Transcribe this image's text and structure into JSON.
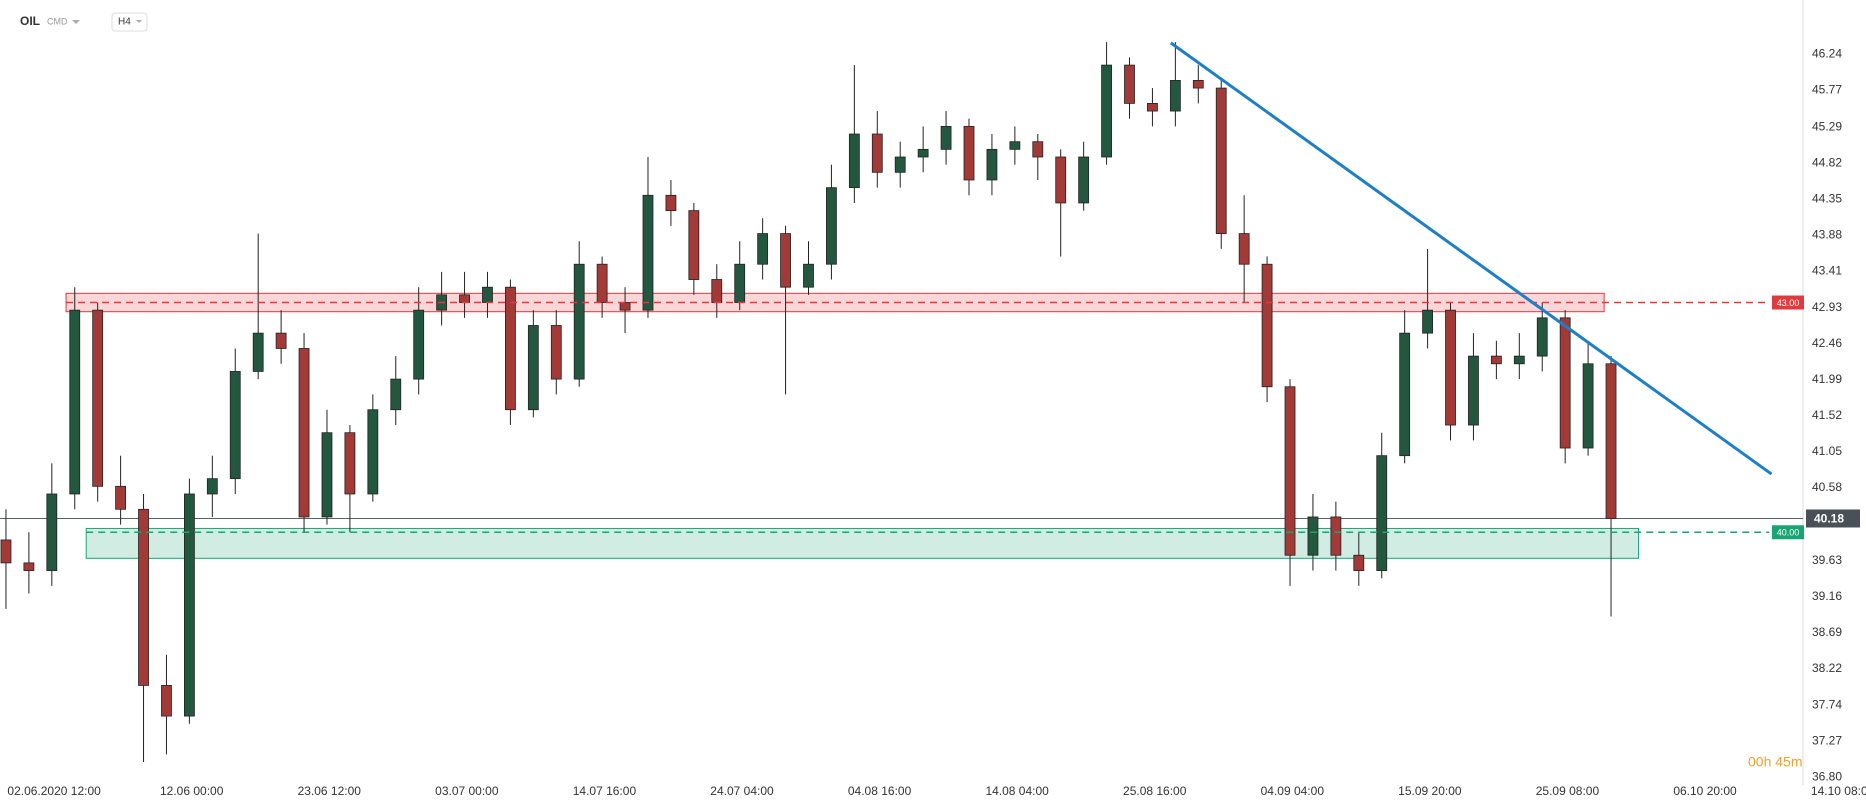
{
  "header": {
    "symbol": "OIL",
    "market": "CMD",
    "timeframe": "H4"
  },
  "countdown": "00h 45m",
  "chart_data": {
    "type": "candlestick",
    "x": [
      0,
      1,
      2,
      3,
      4,
      5,
      6,
      7,
      8,
      9,
      10,
      11,
      12,
      13,
      14,
      15,
      16,
      17,
      18,
      19,
      20,
      21,
      22,
      23,
      24,
      25,
      26,
      27,
      28,
      29,
      30,
      31,
      32,
      33,
      34,
      35,
      36,
      37,
      38,
      39,
      40,
      41,
      42,
      43,
      44,
      45,
      46,
      47,
      48,
      49,
      50,
      51,
      52,
      53,
      54,
      55,
      56,
      57,
      58,
      59,
      60,
      61,
      62,
      63,
      64,
      65,
      66,
      67,
      68,
      69,
      70
    ],
    "open": [
      39.9,
      39.6,
      39.5,
      40.5,
      42.9,
      40.6,
      40.3,
      38.0,
      37.6,
      40.5,
      40.7,
      42.1,
      42.6,
      42.4,
      40.2,
      41.3,
      40.5,
      41.6,
      42.0,
      42.9,
      43.1,
      43.0,
      43.2,
      41.6,
      42.7,
      42.0,
      43.5,
      43.0,
      42.9,
      44.4,
      44.2,
      43.3,
      43.0,
      43.5,
      43.9,
      43.2,
      43.5,
      44.5,
      45.2,
      44.7,
      44.9,
      45.0,
      45.3,
      44.6,
      45.0,
      45.1,
      44.9,
      44.3,
      44.9,
      46.1,
      45.6,
      45.5,
      45.9,
      45.8,
      43.9,
      43.5,
      41.9,
      39.7,
      40.2,
      39.7,
      39.5,
      41.0,
      42.6,
      42.9,
      41.4,
      42.3,
      42.2,
      42.3,
      42.8,
      41.1,
      42.2
    ],
    "high": [
      40.3,
      40.0,
      40.9,
      43.2,
      43.0,
      41.0,
      40.5,
      38.4,
      40.7,
      41.0,
      42.4,
      43.9,
      42.9,
      42.6,
      41.6,
      41.4,
      41.8,
      42.3,
      43.2,
      43.4,
      43.4,
      43.4,
      43.3,
      42.9,
      42.9,
      43.8,
      43.6,
      43.2,
      44.9,
      44.6,
      44.3,
      43.5,
      43.8,
      44.1,
      44.0,
      43.8,
      44.8,
      46.1,
      45.5,
      45.1,
      45.3,
      45.5,
      45.4,
      45.2,
      45.3,
      45.2,
      45.0,
      45.1,
      46.4,
      46.2,
      45.8,
      46.4,
      46.1,
      45.9,
      44.4,
      43.6,
      42.0,
      40.5,
      40.4,
      40.0,
      41.3,
      42.9,
      43.7,
      43.0,
      42.6,
      42.5,
      42.6,
      43.0,
      42.9,
      42.5,
      42.3
    ],
    "low": [
      39.0,
      39.2,
      39.3,
      40.3,
      40.4,
      40.1,
      37.0,
      37.1,
      37.5,
      40.2,
      40.5,
      42.0,
      42.2,
      40.0,
      40.1,
      40.0,
      40.4,
      41.4,
      41.8,
      42.7,
      42.8,
      42.8,
      41.4,
      41.5,
      41.8,
      41.9,
      42.8,
      42.6,
      42.8,
      44.0,
      43.1,
      42.8,
      42.9,
      43.3,
      41.8,
      43.1,
      43.3,
      44.3,
      44.5,
      44.5,
      44.7,
      44.8,
      44.4,
      44.4,
      44.8,
      44.6,
      43.6,
      44.2,
      44.8,
      45.4,
      45.3,
      45.3,
      45.6,
      43.7,
      43.0,
      41.7,
      39.3,
      39.5,
      39.5,
      39.3,
      39.4,
      40.9,
      42.4,
      41.2,
      41.2,
      42.0,
      42.0,
      42.1,
      40.9,
      41.0,
      38.9
    ],
    "close": [
      39.6,
      39.5,
      40.5,
      42.9,
      40.6,
      40.3,
      38.0,
      37.6,
      40.5,
      40.7,
      42.1,
      42.6,
      42.4,
      40.2,
      41.3,
      40.5,
      41.6,
      42.0,
      42.9,
      43.1,
      43.0,
      43.2,
      41.6,
      42.7,
      42.0,
      43.5,
      43.0,
      42.9,
      44.4,
      44.2,
      43.3,
      43.0,
      43.5,
      43.9,
      43.2,
      43.5,
      44.5,
      45.2,
      44.7,
      44.9,
      45.0,
      45.3,
      44.6,
      45.0,
      45.1,
      44.9,
      44.3,
      44.9,
      46.1,
      45.6,
      45.5,
      45.9,
      45.8,
      43.9,
      43.5,
      41.9,
      39.7,
      40.2,
      39.7,
      39.5,
      41.0,
      42.6,
      42.9,
      41.4,
      42.3,
      42.2,
      42.3,
      42.8,
      41.1,
      42.2,
      40.18
    ],
    "up_color": "#24573f",
    "down_color": "#a23a38",
    "xlim": [
      -0.26,
      80.64
    ],
    "xticks": [
      {
        "value": 2.1,
        "label": "02.06.2020 12:00"
      },
      {
        "value": 8.1,
        "label": "12.06 00:00"
      },
      {
        "value": 14.1,
        "label": "23.06 12:00"
      },
      {
        "value": 20.1,
        "label": "03.07 00:00"
      },
      {
        "value": 26.1,
        "label": "14.07 16:00"
      },
      {
        "value": 32.1,
        "label": "24.07 04:00"
      },
      {
        "value": 38.1,
        "label": "04.08 16:00"
      },
      {
        "value": 44.1,
        "label": "14.08 04:00"
      },
      {
        "value": 50.1,
        "label": "25.08 16:00"
      },
      {
        "value": 56.1,
        "label": "04.09 04:00"
      },
      {
        "value": 62.1,
        "label": "15.09 20:00"
      },
      {
        "value": 68.1,
        "label": "25.09 08:00"
      },
      {
        "value": 74.1,
        "label": "06.10 20:00"
      },
      {
        "value": 80.1,
        "label": "14.10 08:00"
      }
    ],
    "ylim": [
      36.7,
      46.95
    ],
    "yticks": [
      46.24,
      45.77,
      45.29,
      44.82,
      44.35,
      43.88,
      43.41,
      42.93,
      42.46,
      41.99,
      41.52,
      41.05,
      40.58,
      39.63,
      39.16,
      38.69,
      38.22,
      37.74,
      37.27,
      {
        "value": 36.8,
        "label": "36.80"
      }
    ],
    "last_price": 40.18,
    "levels": [
      {
        "value": 43.0,
        "label": "43.00",
        "color": "#e0393e",
        "zone": [
          42.88,
          43.12
        ],
        "from": 2.62,
        "to": 69.7,
        "line_to": 76.9
      },
      {
        "value": 40.0,
        "label": "40.00",
        "color": "#17a673",
        "zone": [
          39.66,
          40.05
        ],
        "from": 3.5,
        "to": 71.2,
        "line_to": 76.9
      }
    ],
    "trendline": {
      "x": [
        50.8,
        77.0
      ],
      "y": [
        46.39,
        40.76
      ],
      "color": "#1e7fc6"
    }
  }
}
